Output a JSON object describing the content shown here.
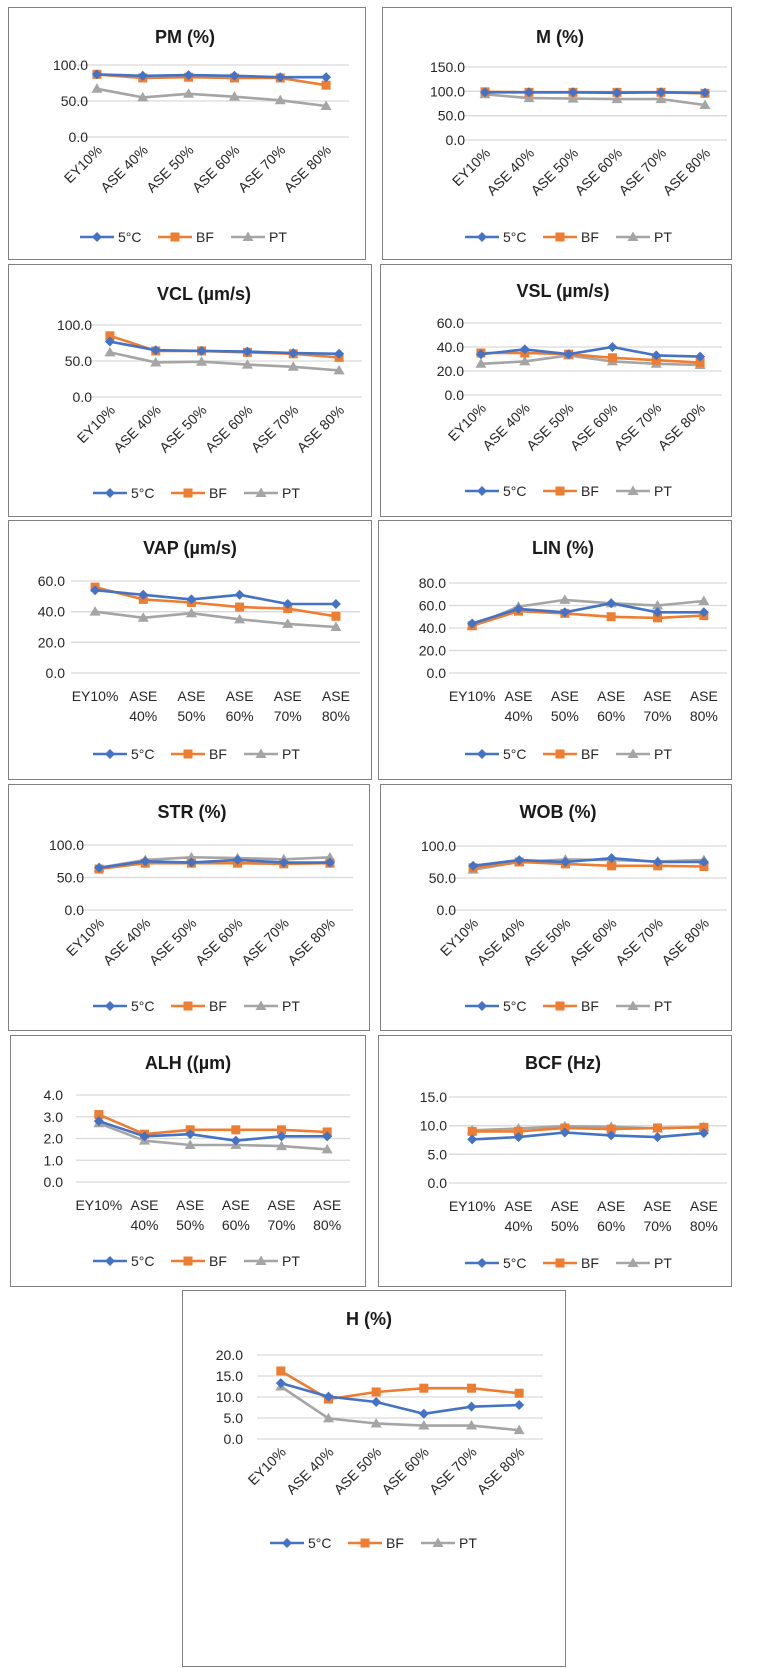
{
  "colors": {
    "5oC": "#4472C4",
    "BF": "#ED7D31",
    "PT": "#A5A5A5",
    "grid": "#D9D9D9"
  },
  "legend_labels": [
    "5°C",
    "BF",
    "PT"
  ],
  "chart_data": [
    {
      "type": "line",
      "title": "PM (%)",
      "categories": [
        "EY10%",
        "ASE 40%",
        "ASE 50%",
        "ASE 60%",
        "ASE 70%",
        "ASE 80%"
      ],
      "yticks": [
        "100.0",
        "50.0",
        "0.0"
      ],
      "ylim": [
        0,
        100
      ],
      "grid": true,
      "legend": "bottom",
      "series": [
        {
          "name": "5°C",
          "values": [
            87,
            85,
            86,
            85,
            83,
            83
          ]
        },
        {
          "name": "BF",
          "values": [
            87,
            82,
            83,
            82,
            82,
            72
          ]
        },
        {
          "name": "PT",
          "values": [
            67,
            55,
            60,
            56,
            51,
            43
          ]
        }
      ]
    },
    {
      "type": "line",
      "title": "M (%)",
      "categories": [
        "EY10%",
        "ASE 40%",
        "ASE 50%",
        "ASE 60%",
        "ASE 70%",
        "ASE 80%"
      ],
      "yticks": [
        "150.0",
        "100.0",
        "50.0",
        "0.0"
      ],
      "ylim": [
        0,
        150
      ],
      "grid": true,
      "legend": "bottom",
      "series": [
        {
          "name": "5°C",
          "values": [
            98,
            98,
            98,
            97,
            98,
            97
          ]
        },
        {
          "name": "BF",
          "values": [
            99,
            98,
            98,
            98,
            98,
            96
          ]
        },
        {
          "name": "PT",
          "values": [
            94,
            86,
            85,
            84,
            84,
            72
          ]
        }
      ]
    },
    {
      "type": "line",
      "title": "VCL (µm/s)",
      "categories": [
        "EY10%",
        "ASE 40%",
        "ASE 50%",
        "ASE 60%",
        "ASE 70%",
        "ASE 80%"
      ],
      "yticks": [
        "100.0",
        "50.0",
        "0.0"
      ],
      "ylim": [
        0,
        100
      ],
      "grid": true,
      "legend": "bottom",
      "series": [
        {
          "name": "5°C",
          "values": [
            77,
            65,
            64,
            63,
            61,
            60
          ]
        },
        {
          "name": "BF",
          "values": [
            85,
            64,
            64,
            62,
            60,
            55
          ]
        },
        {
          "name": "PT",
          "values": [
            62,
            48,
            49,
            45,
            42,
            37
          ]
        }
      ]
    },
    {
      "type": "line",
      "title": "VSL (µm/s)",
      "categories": [
        "EY10%",
        "ASE 40%",
        "ASE 50%",
        "ASE 60%",
        "ASE 70%",
        "ASE 80%"
      ],
      "yticks": [
        "60.0",
        "40.0",
        "20.0",
        "0.0"
      ],
      "ylim": [
        0,
        60
      ],
      "grid": true,
      "legend": "bottom",
      "series": [
        {
          "name": "5°C",
          "values": [
            34,
            38,
            34,
            40,
            33,
            32
          ]
        },
        {
          "name": "BF",
          "values": [
            35,
            35,
            34,
            31,
            29,
            27
          ]
        },
        {
          "name": "PT",
          "values": [
            26,
            28,
            33,
            28,
            26,
            25
          ]
        }
      ]
    },
    {
      "type": "line",
      "title": "VAP (µm/s)",
      "categories": [
        "EY10%",
        "ASE 40%",
        "ASE 50%",
        "ASE 60%",
        "ASE 70%",
        "ASE 80%"
      ],
      "yticks": [
        "60.0",
        "40.0",
        "20.0",
        "0.0"
      ],
      "ylim": [
        0,
        60
      ],
      "grid": true,
      "legend": "bottom",
      "series": [
        {
          "name": "5°C",
          "values": [
            54,
            51,
            48,
            51,
            45,
            45
          ]
        },
        {
          "name": "BF",
          "values": [
            56,
            48,
            46,
            43,
            42,
            37
          ]
        },
        {
          "name": "PT",
          "values": [
            40,
            36,
            39,
            35,
            32,
            30
          ]
        }
      ]
    },
    {
      "type": "line",
      "title": "LIN (%)",
      "categories": [
        "EY10%",
        "ASE 40%",
        "ASE 50%",
        "ASE 60%",
        "ASE 70%",
        "ASE 80%"
      ],
      "yticks": [
        "80.0",
        "60.0",
        "40.0",
        "20.0",
        "0.0"
      ],
      "ylim": [
        0,
        80
      ],
      "grid": true,
      "legend": "bottom",
      "series": [
        {
          "name": "5°C",
          "values": [
            44,
            57,
            54,
            62,
            54,
            54
          ]
        },
        {
          "name": "BF",
          "values": [
            42,
            55,
            53,
            50,
            49,
            51
          ]
        },
        {
          "name": "PT",
          "values": [
            42,
            59,
            65,
            62,
            60,
            64
          ]
        }
      ]
    },
    {
      "type": "line",
      "title": "STR (%)",
      "categories": [
        "EY10%",
        "ASE 40%",
        "ASE 50%",
        "ASE 60%",
        "ASE 70%",
        "ASE 80%"
      ],
      "yticks": [
        "100.0",
        "50.0",
        "0.0"
      ],
      "ylim": [
        0,
        100
      ],
      "grid": true,
      "legend": "bottom",
      "series": [
        {
          "name": "5°C",
          "values": [
            65,
            75,
            73,
            77,
            73,
            73
          ]
        },
        {
          "name": "BF",
          "values": [
            63,
            72,
            72,
            72,
            71,
            72
          ]
        },
        {
          "name": "PT",
          "values": [
            65,
            77,
            81,
            80,
            78,
            81
          ]
        }
      ]
    },
    {
      "type": "line",
      "title": "WOB (%)",
      "categories": [
        "EY10%",
        "ASE 40%",
        "ASE 50%",
        "ASE 60%",
        "ASE 70%",
        "ASE 80%"
      ],
      "yticks": [
        "100.0",
        "50.0",
        "0.0"
      ],
      "ylim": [
        0,
        100
      ],
      "grid": true,
      "legend": "bottom",
      "series": [
        {
          "name": "5°C",
          "values": [
            69,
            78,
            75,
            81,
            75,
            75
          ]
        },
        {
          "name": "BF",
          "values": [
            66,
            75,
            72,
            69,
            69,
            68
          ]
        },
        {
          "name": "PT",
          "values": [
            63,
            75,
            79,
            78,
            76,
            78
          ]
        }
      ]
    },
    {
      "type": "line",
      "title": "ALH ((µm)",
      "categories": [
        "EY10%",
        "ASE 40%",
        "ASE 50%",
        "ASE 60%",
        "ASE 70%",
        "ASE 80%"
      ],
      "yticks": [
        "4.0",
        "3.0",
        "2.0",
        "1.0",
        "0.0"
      ],
      "ylim": [
        0,
        4
      ],
      "grid": true,
      "legend": "bottom",
      "series": [
        {
          "name": "5°C",
          "values": [
            2.8,
            2.1,
            2.2,
            1.9,
            2.1,
            2.1
          ]
        },
        {
          "name": "BF",
          "values": [
            3.1,
            2.2,
            2.4,
            2.4,
            2.4,
            2.3
          ]
        },
        {
          "name": "PT",
          "values": [
            2.7,
            1.9,
            1.7,
            1.7,
            1.65,
            1.5
          ]
        }
      ]
    },
    {
      "type": "line",
      "title": "BCF (Hz)",
      "categories": [
        "EY10%",
        "ASE 40%",
        "ASE 50%",
        "ASE 60%",
        "ASE 70%",
        "ASE 80%"
      ],
      "yticks": [
        "15.0",
        "10.0",
        "5.0",
        "0.0"
      ],
      "ylim": [
        0,
        15
      ],
      "grid": true,
      "legend": "bottom",
      "series": [
        {
          "name": "5°C",
          "values": [
            7.6,
            8.0,
            8.8,
            8.3,
            8.0,
            8.7
          ]
        },
        {
          "name": "BF",
          "values": [
            9.0,
            9.0,
            9.6,
            9.4,
            9.6,
            9.7
          ]
        },
        {
          "name": "PT",
          "values": [
            9.2,
            9.5,
            9.9,
            9.8,
            9.5,
            9.8
          ]
        }
      ]
    },
    {
      "type": "line",
      "title": "H (%)",
      "categories": [
        "EY10%",
        "ASE 40%",
        "ASE 50%",
        "ASE 60%",
        "ASE 70%",
        "ASE 80%"
      ],
      "yticks": [
        "20.0",
        "15.0",
        "10.0",
        "5.0",
        "0.0"
      ],
      "ylim": [
        0,
        20
      ],
      "grid": true,
      "legend": "bottom",
      "series": [
        {
          "name": "5°C",
          "values": [
            13.3,
            10.1,
            8.8,
            6.0,
            7.7,
            8.1
          ]
        },
        {
          "name": "BF",
          "values": [
            16.2,
            9.5,
            11.2,
            12.1,
            12.1,
            10.9
          ]
        },
        {
          "name": "PT",
          "values": [
            12.5,
            4.9,
            3.7,
            3.2,
            3.2,
            2.1
          ]
        }
      ]
    }
  ]
}
